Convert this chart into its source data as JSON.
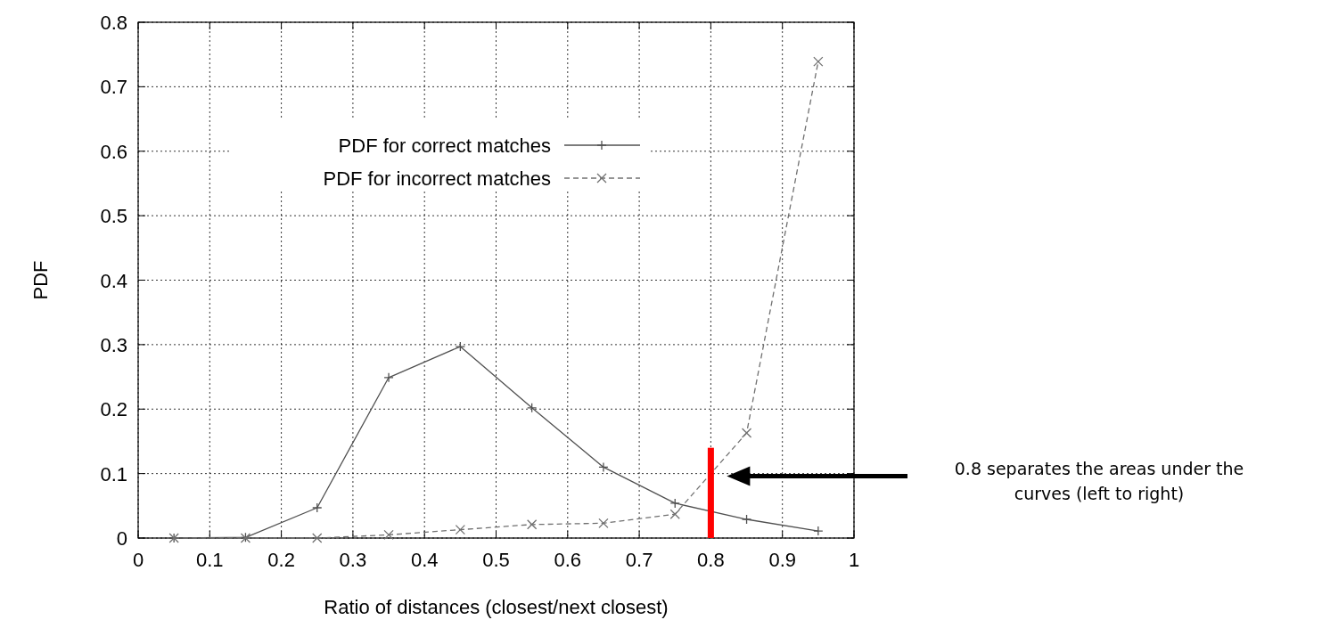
{
  "chart_data": {
    "type": "line",
    "xlabel": "Ratio of distances (closest/next closest)",
    "ylabel": "PDF",
    "x": [
      0.05,
      0.15,
      0.25,
      0.35,
      0.45,
      0.55,
      0.65,
      0.75,
      0.85,
      0.95
    ],
    "series": [
      {
        "name": "PDF for correct matches",
        "color": "#505050",
        "marker": "plus",
        "line_style": "solid",
        "values": [
          0,
          0.001,
          0.047,
          0.249,
          0.297,
          0.202,
          0.11,
          0.054,
          0.029,
          0.011
        ]
      },
      {
        "name": "PDF for incorrect matches",
        "color": "#707070",
        "marker": "cross",
        "line_style": "dashed",
        "values": [
          0,
          0,
          0,
          0.005,
          0.013,
          0.021,
          0.023,
          0.037,
          0.163,
          0.739
        ]
      }
    ],
    "xlim": [
      0,
      1
    ],
    "xticks": [
      0,
      0.1,
      0.2,
      0.3,
      0.4,
      0.5,
      0.6,
      0.7,
      0.8,
      0.9,
      1
    ],
    "ylim": [
      0,
      0.8
    ],
    "yticks": [
      0,
      0.1,
      0.2,
      0.3,
      0.4,
      0.5,
      0.6,
      0.7,
      0.8
    ],
    "grid": true,
    "legend": "top left",
    "ref_lines": [
      {
        "axis": "x",
        "value": 0.8,
        "color": "#ff0000"
      }
    ],
    "annotations": [
      "0.8 separates the areas under the curves (left to right)"
    ]
  }
}
